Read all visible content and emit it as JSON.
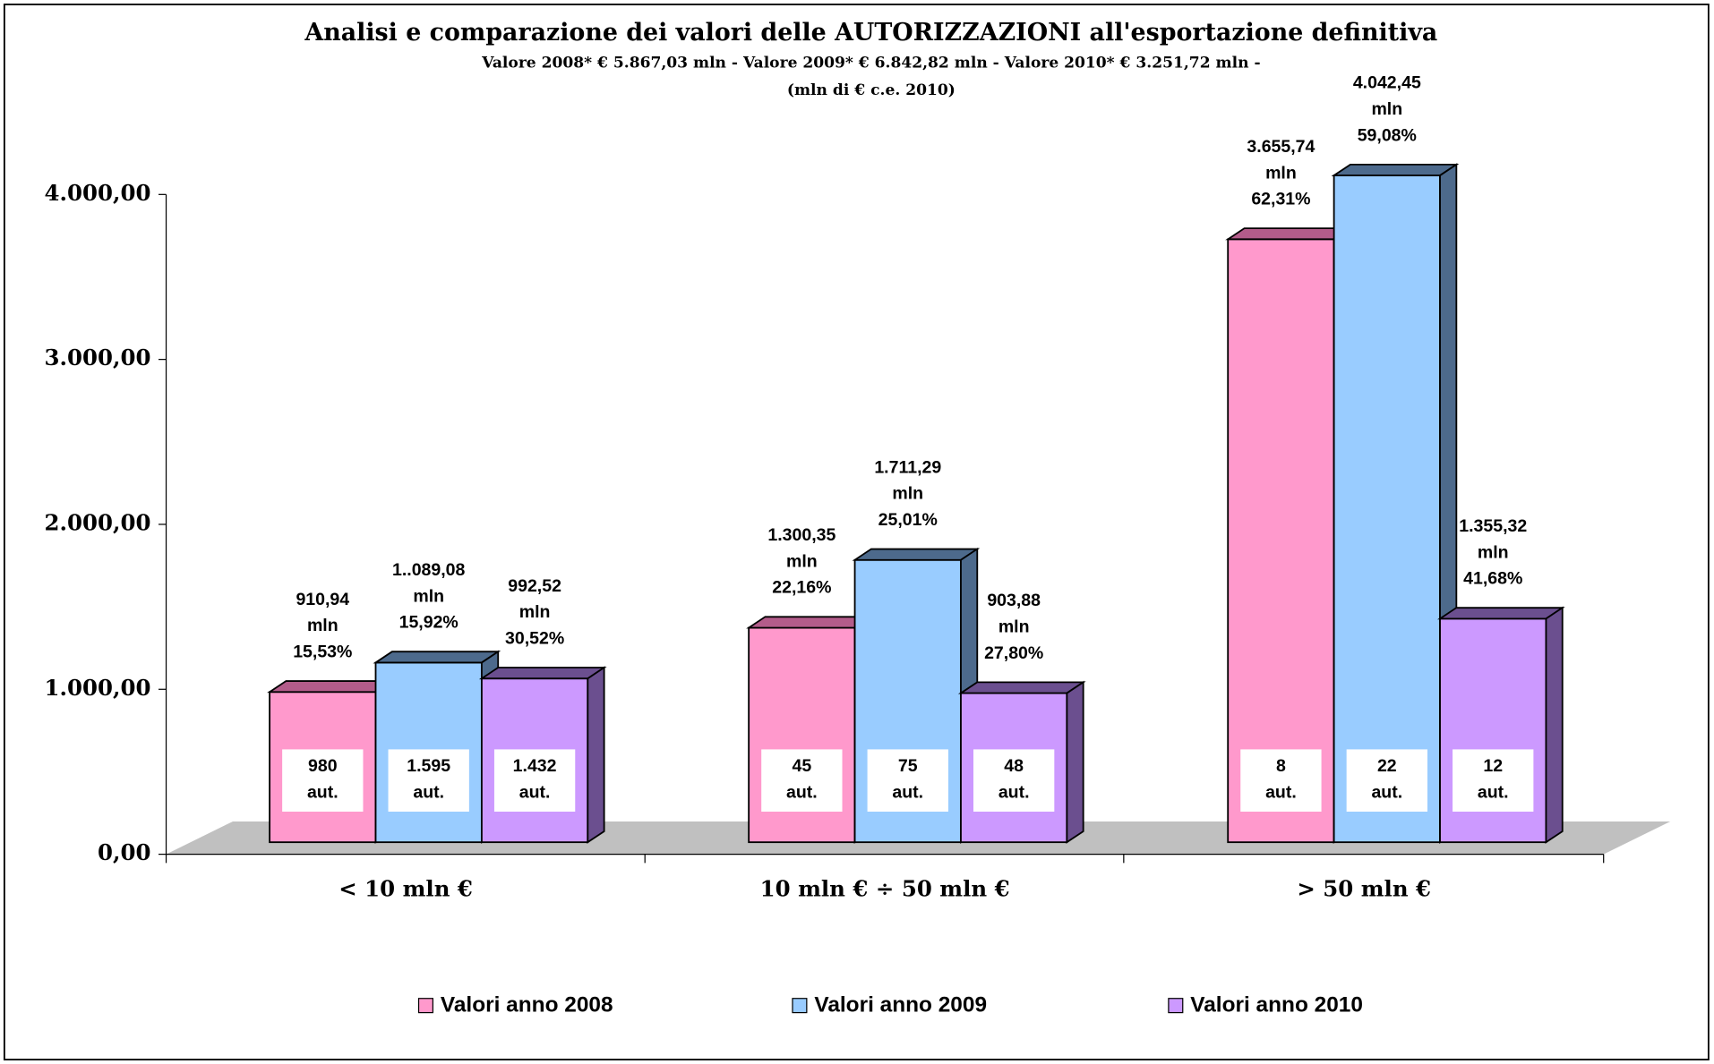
{
  "chart_data": {
    "type": "bar3d",
    "title": "Analisi e comparazione dei valori delle AUTORIZZAZIONI all'esportazione definitiva",
    "subtitle": [
      "Valore 2008* € 5.867,03 mln - Valore 2009* € 6.842,82 mln - Valore 2010* € 3.251,72 mln  -",
      "(mln di € c.e. 2010)"
    ],
    "categories": [
      "< 10 mln €",
      "10 mln € ÷ 50 mln €",
      "> 50 mln  €"
    ],
    "ylim": [
      0,
      4000
    ],
    "yticks": [
      {
        "value": 0,
        "label": "0,00"
      },
      {
        "value": 1000,
        "label": "1.000,00"
      },
      {
        "value": 2000,
        "label": "2.000,00"
      },
      {
        "value": 3000,
        "label": "3.000,00"
      },
      {
        "value": 4000,
        "label": "4.000,00"
      }
    ],
    "legend": "bottom",
    "unit_label": "mln",
    "count_unit": "aut.",
    "series": [
      {
        "name": "Valori anno 2008",
        "color": "#ff99cc",
        "shade_color": "#b35c8a",
        "values": [
          910.94,
          1300.35,
          3655.74
        ],
        "value_labels": [
          "910,94",
          "1.300,35",
          "3.655,74"
        ],
        "shares": [
          15.53,
          22.16,
          62.31
        ],
        "share_labels": [
          "15,53%",
          "22,16%",
          "62,31%"
        ],
        "counts": [
          980,
          45,
          8
        ],
        "count_labels": [
          "980",
          "45",
          "8"
        ]
      },
      {
        "name": "Valori anno 2009",
        "color": "#99ccff",
        "shade_color": "#4d6a8c",
        "values": [
          1089.08,
          1711.29,
          4042.45
        ],
        "value_labels": [
          "1..089,08",
          "1.711,29",
          "4.042,45"
        ],
        "shares": [
          15.92,
          25.01,
          59.08
        ],
        "share_labels": [
          "15,92%",
          "25,01%",
          "59,08%"
        ],
        "counts": [
          1595,
          75,
          22
        ],
        "count_labels": [
          "1.595",
          "75",
          "22"
        ]
      },
      {
        "name": "Valori anno 2010",
        "color": "#cc99ff",
        "shade_color": "#6b4f8f",
        "values": [
          992.52,
          903.88,
          1355.32
        ],
        "value_labels": [
          "992,52",
          "903,88",
          "1.355,32"
        ],
        "shares": [
          30.52,
          27.8,
          41.68
        ],
        "share_labels": [
          "30,52%",
          "27,80%",
          "41,68%"
        ],
        "counts": [
          1432,
          48,
          12
        ],
        "count_labels": [
          "1.432",
          "48",
          "12"
        ]
      }
    ]
  }
}
